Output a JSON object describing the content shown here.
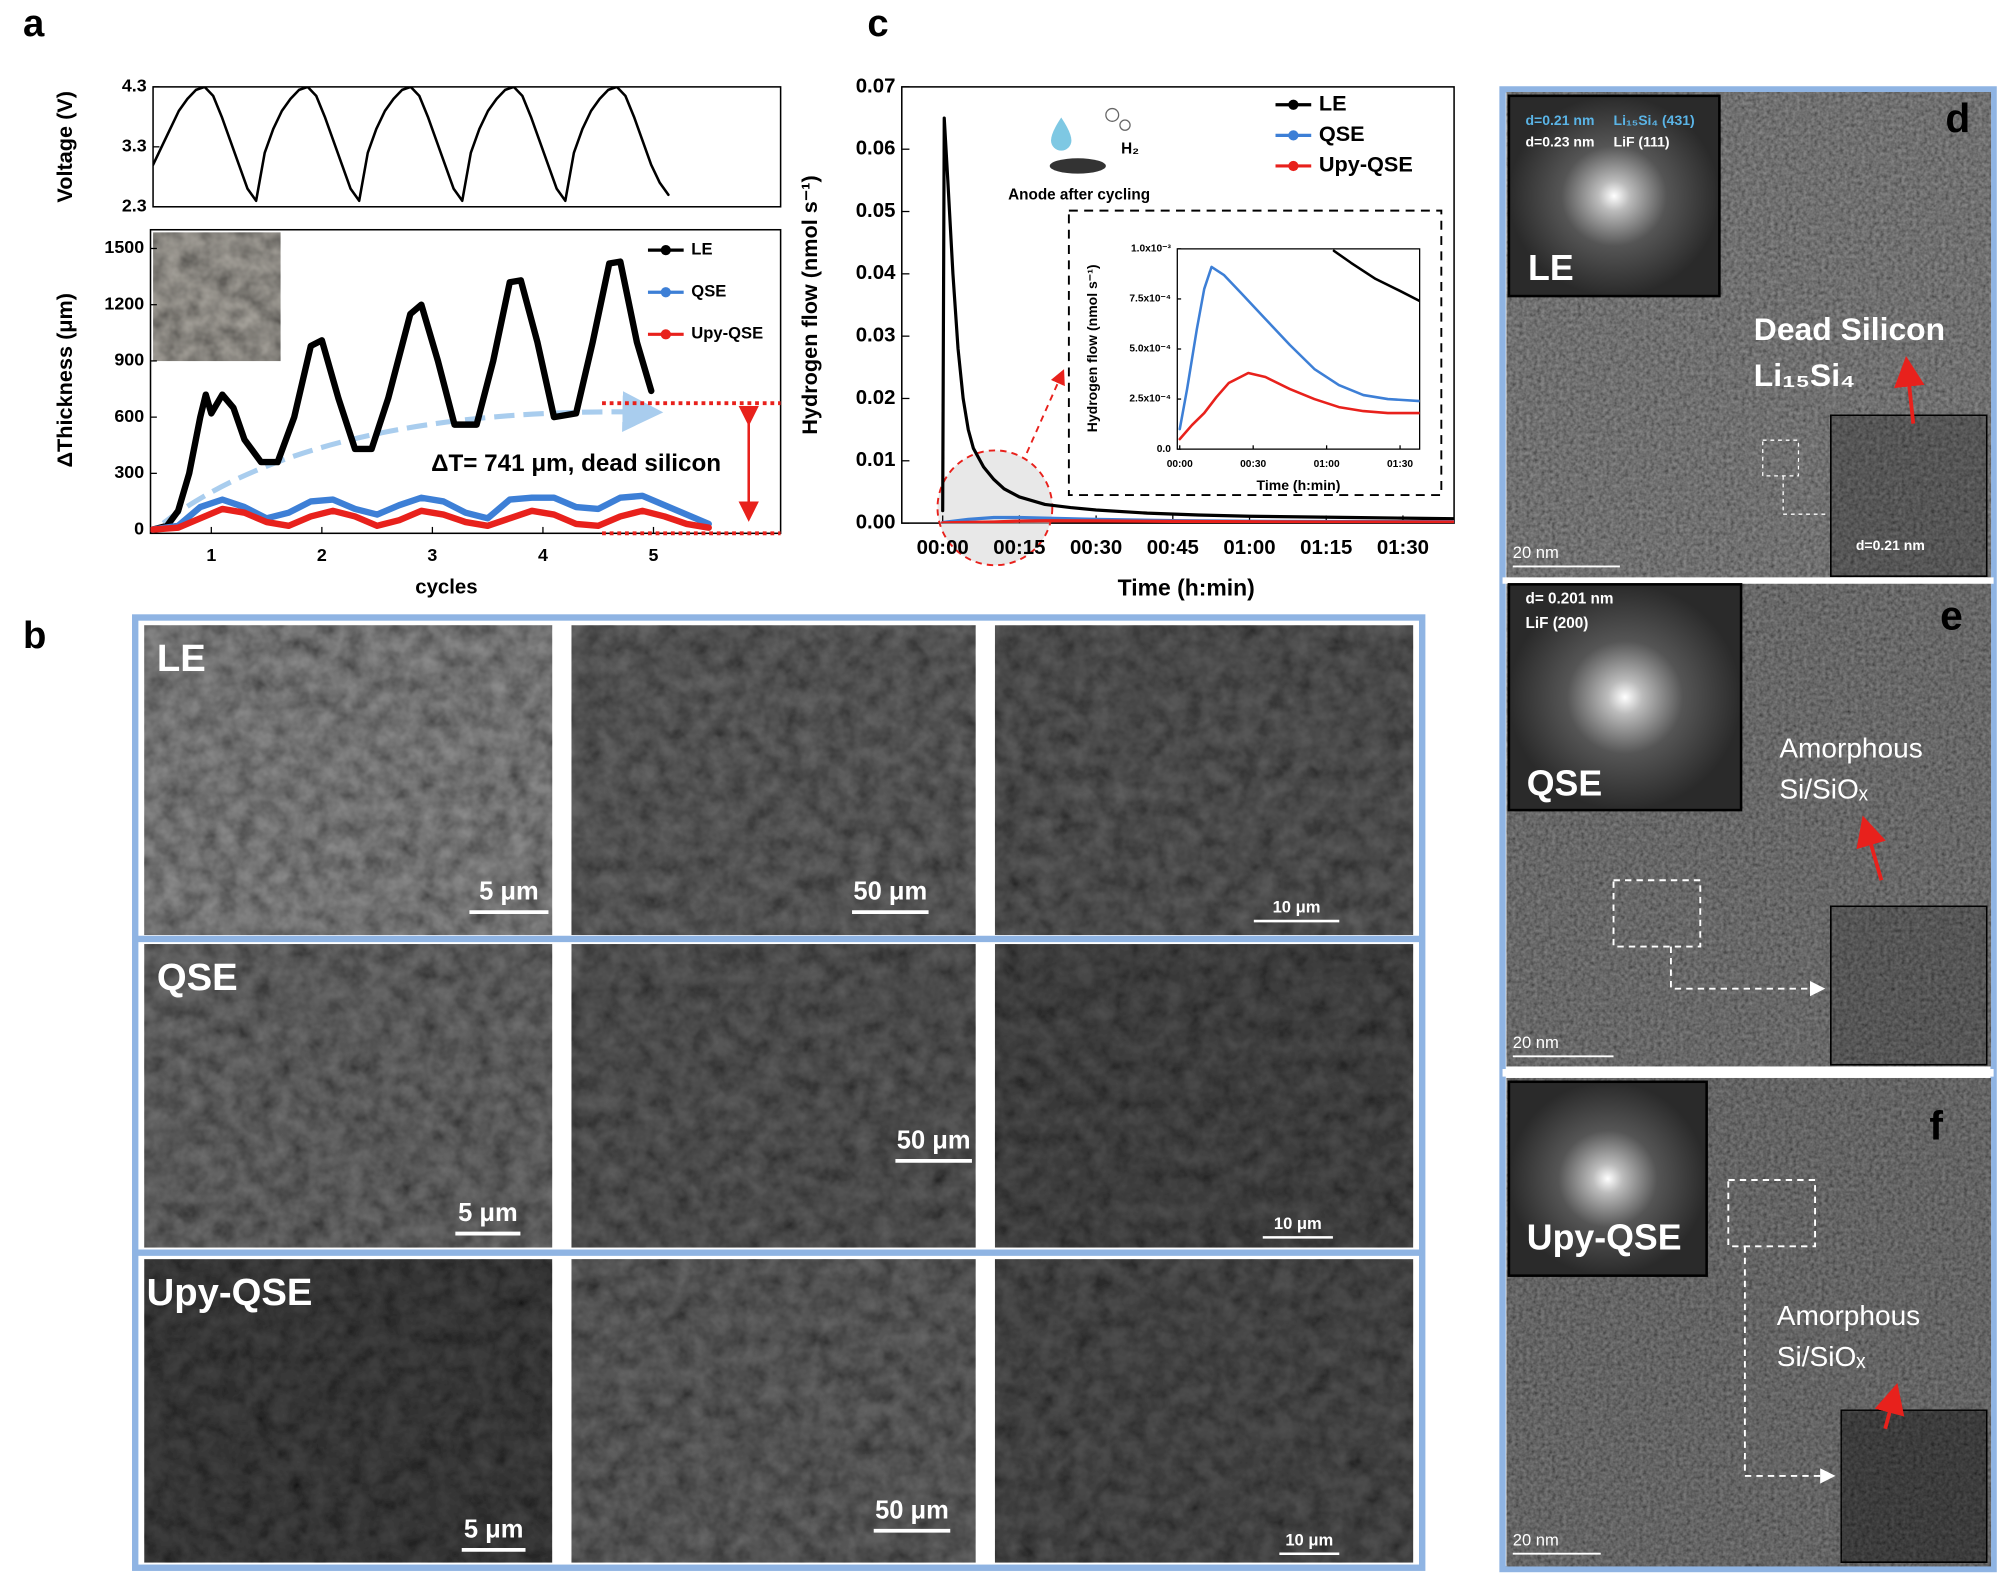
{
  "panel_labels": [
    "a",
    "b",
    "c",
    "d",
    "e",
    "f"
  ],
  "chart_data": [
    {
      "type": "line",
      "ylabel": "Voltage (V)",
      "ylim": [
        2.3,
        4.3
      ],
      "yticks": [
        2.3,
        3.3,
        4.3
      ],
      "color": "#000000",
      "values": [
        3.0,
        3.3,
        3.6,
        3.9,
        4.1,
        4.25,
        4.3,
        4.15,
        3.8,
        3.4,
        3.0,
        2.6,
        2.4,
        3.2,
        3.6,
        3.9,
        4.1,
        4.25,
        4.3,
        4.15,
        3.8,
        3.4,
        3.0,
        2.6,
        2.4,
        3.2,
        3.6,
        3.9,
        4.1,
        4.25,
        4.3,
        4.15,
        3.8,
        3.4,
        3.0,
        2.6,
        2.4,
        3.2,
        3.6,
        3.9,
        4.1,
        4.25,
        4.3,
        4.15,
        3.8,
        3.4,
        3.0,
        2.6,
        2.4,
        3.2,
        3.6,
        3.9,
        4.1,
        4.25,
        4.3,
        4.15,
        3.8,
        3.4,
        3.0,
        2.7,
        2.5
      ]
    },
    {
      "type": "line",
      "ylabel": "ΔThickness (μm)",
      "xlabel": "cycles",
      "annotation": "ΔT= 741 μm, dead silicon",
      "legend": "upper right",
      "xlim": [
        0.45,
        6.15
      ],
      "xticks": [
        1,
        2,
        3,
        4,
        5
      ],
      "ylim": [
        -20,
        1600
      ],
      "yticks": [
        0,
        300,
        600,
        900,
        1200,
        1500
      ],
      "series": [
        {
          "name": "LE",
          "color": "#000000",
          "x": [
            0.47,
            0.6,
            0.7,
            0.8,
            0.9,
            0.95,
            1.0,
            1.1,
            1.2,
            1.3,
            1.45,
            1.6,
            1.75,
            1.9,
            2.0,
            2.15,
            2.3,
            2.45,
            2.6,
            2.8,
            2.9,
            3.05,
            3.2,
            3.4,
            3.55,
            3.7,
            3.8,
            3.95,
            4.1,
            4.3,
            4.45,
            4.6,
            4.7,
            4.85,
            4.98
          ],
          "values": [
            0,
            20,
            100,
            300,
            600,
            720,
            620,
            720,
            650,
            480,
            360,
            360,
            600,
            980,
            1010,
            700,
            430,
            430,
            700,
            1150,
            1200,
            900,
            560,
            560,
            900,
            1320,
            1330,
            1000,
            600,
            620,
            1000,
            1420,
            1430,
            1000,
            740
          ]
        },
        {
          "name": "QSE",
          "color": "#3d7fd6",
          "x": [
            0.47,
            0.7,
            0.9,
            1.1,
            1.3,
            1.5,
            1.7,
            1.9,
            2.1,
            2.3,
            2.5,
            2.7,
            2.9,
            3.1,
            3.3,
            3.5,
            3.7,
            3.9,
            4.1,
            4.3,
            4.5,
            4.7,
            4.9,
            5.1,
            5.3,
            5.5
          ],
          "values": [
            0,
            20,
            120,
            160,
            120,
            60,
            90,
            150,
            160,
            110,
            80,
            130,
            170,
            150,
            90,
            60,
            160,
            170,
            170,
            120,
            110,
            170,
            180,
            130,
            80,
            30
          ]
        },
        {
          "name": "Upy-QSE",
          "color": "#e8211c",
          "x": [
            0.47,
            0.7,
            0.9,
            1.1,
            1.3,
            1.5,
            1.7,
            1.9,
            2.1,
            2.3,
            2.5,
            2.7,
            2.9,
            3.1,
            3.3,
            3.5,
            3.7,
            3.9,
            4.1,
            4.3,
            4.5,
            4.7,
            4.9,
            5.1,
            5.3,
            5.5
          ],
          "values": [
            0,
            10,
            60,
            110,
            90,
            40,
            20,
            70,
            100,
            70,
            20,
            50,
            100,
            80,
            40,
            20,
            60,
            100,
            80,
            30,
            20,
            70,
            100,
            70,
            30,
            10
          ]
        }
      ]
    },
    {
      "type": "line",
      "xlabel": "Time (h:min)",
      "ylabel": "Hydrogen flow (nmol s⁻¹)",
      "annotations": [
        "Anode after cycling",
        "H₂"
      ],
      "legend": "upper right",
      "xlim": [
        -8,
        100
      ],
      "xticks": [
        {
          "value": 0,
          "label": "00:00"
        },
        {
          "value": 15,
          "label": "00:15"
        },
        {
          "value": 30,
          "label": "00:30"
        },
        {
          "value": 45,
          "label": "00:45"
        },
        {
          "value": 60,
          "label": "01:00"
        },
        {
          "value": 75,
          "label": "01:15"
        },
        {
          "value": 90,
          "label": "01:30"
        }
      ],
      "ylim": [
        0,
        0.07
      ],
      "yticks": [
        {
          "value": 0,
          "label": "0.00"
        },
        0.01,
        0.02,
        0.03,
        0.04,
        0.05,
        0.06,
        0.07
      ],
      "series": [
        {
          "name": "LE",
          "color": "#000000",
          "x": [
            0,
            0.3,
            1,
            2,
            3,
            4,
            5,
            6,
            8,
            10,
            12,
            15,
            20,
            25,
            30,
            40,
            50,
            60,
            70,
            80,
            90,
            100
          ],
          "values": [
            0.002,
            0.065,
            0.055,
            0.04,
            0.028,
            0.02,
            0.015,
            0.012,
            0.009,
            0.007,
            0.0055,
            0.0042,
            0.003,
            0.0025,
            0.0021,
            0.0016,
            0.0013,
            0.0011,
            0.001,
            0.0009,
            0.0008,
            0.0007
          ]
        },
        {
          "name": "QSE",
          "color": "#3d7fd6",
          "x": [
            0,
            5,
            10,
            15,
            20,
            30,
            45,
            60,
            75,
            90,
            100
          ],
          "values": [
            0.0001,
            0.0006,
            0.0009,
            0.0009,
            0.0008,
            0.0006,
            0.0004,
            0.0003,
            0.00026,
            0.00024,
            0.00024
          ]
        },
        {
          "name": "Upy-QSE",
          "color": "#e8211c",
          "x": [
            0,
            5,
            10,
            15,
            20,
            30,
            45,
            60,
            75,
            90,
            100
          ],
          "values": [
            5e-05,
            0.00012,
            0.00018,
            0.00033,
            0.00038,
            0.00036,
            0.00028,
            0.00022,
            0.00019,
            0.00018,
            0.00018
          ]
        }
      ]
    },
    {
      "type": "line",
      "xlabel": "Time (h:min)",
      "ylabel": "Hydrogen flow (nmol s⁻¹)",
      "xlim": [
        -1,
        98
      ],
      "xticks": [
        {
          "value": 0,
          "label": "00:00"
        },
        {
          "value": 30,
          "label": "00:30"
        },
        {
          "value": 60,
          "label": "01:00"
        },
        {
          "value": 90,
          "label": "01:30"
        }
      ],
      "ylim": [
        0,
        0.001
      ],
      "yticks": [
        {
          "value": 0,
          "label": "0.0"
        },
        {
          "value": 0.00025,
          "label": "2.5x10⁻⁴"
        },
        {
          "value": 0.0005,
          "label": "5.0x10⁻⁴"
        },
        {
          "value": 0.00075,
          "label": "7.5x10⁻⁴"
        },
        {
          "value": 0.001,
          "label": "1.0x10⁻³"
        }
      ],
      "series": [
        {
          "name": "LE",
          "color": "#000000",
          "x": [
            63,
            70,
            80,
            90,
            98
          ],
          "values": [
            0.00099,
            0.00093,
            0.00085,
            0.00079,
            0.00074
          ]
        },
        {
          "name": "QSE",
          "color": "#3d7fd6",
          "x": [
            0,
            3,
            7,
            10,
            13,
            18,
            25,
            35,
            45,
            55,
            65,
            75,
            85,
            98
          ],
          "values": [
            0.0001,
            0.0003,
            0.0006,
            0.0008,
            0.00091,
            0.00087,
            0.00078,
            0.00065,
            0.00052,
            0.0004,
            0.00032,
            0.00027,
            0.00025,
            0.00024
          ]
        },
        {
          "name": "Upy-QSE",
          "color": "#e8211c",
          "x": [
            0,
            5,
            10,
            15,
            20,
            28,
            35,
            45,
            55,
            65,
            75,
            85,
            98
          ],
          "values": [
            5e-05,
            0.00012,
            0.00018,
            0.00026,
            0.00033,
            0.00038,
            0.00036,
            0.0003,
            0.00025,
            0.00021,
            0.00019,
            0.00018,
            0.00018
          ]
        }
      ]
    }
  ],
  "sem": {
    "rows": [
      {
        "label": "LE",
        "scale_bars": [
          "5 μm",
          "50 μm",
          "10 μm"
        ]
      },
      {
        "label": "QSE",
        "scale_bars": [
          "5 μm",
          "50 μm",
          "10 μm"
        ]
      },
      {
        "label": "Upy-QSE",
        "scale_bars": [
          "5 μm",
          "50 μm",
          "10 μm"
        ]
      }
    ]
  },
  "tem": [
    {
      "label": "LE",
      "fft_texts": [
        "d=0.21 nm",
        "Li₁₅Si₄ (431)",
        "d=0.23 nm",
        "LiF (111)"
      ],
      "annotation": [
        "Dead Silicon",
        "Li₁₅Si₄"
      ],
      "scale_bar": "20 nm",
      "zoom_label": "d=0.21 nm"
    },
    {
      "label": "QSE",
      "fft_texts": [
        "d= 0.201 nm",
        "LiF (200)"
      ],
      "annotation": [
        "Amorphous",
        "Si/SiOₓ"
      ],
      "scale_bar": "20 nm"
    },
    {
      "label": "Upy-QSE",
      "annotation": [
        "Amorphous",
        "Si/SiOₓ"
      ],
      "scale_bar": "20 nm"
    }
  ]
}
